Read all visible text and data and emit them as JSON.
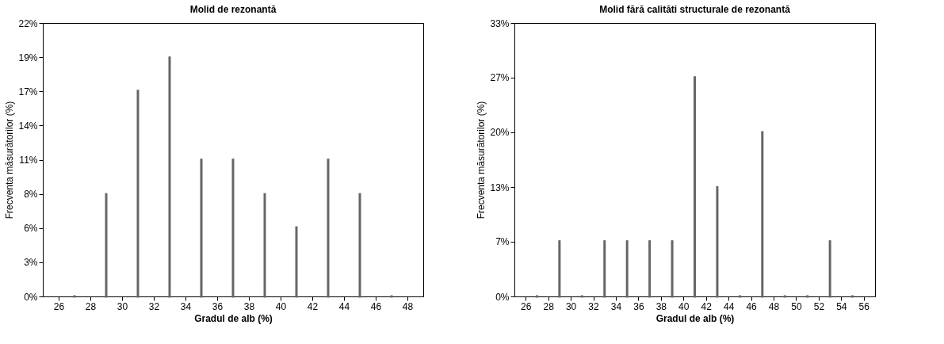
{
  "chart_data": [
    {
      "type": "bar",
      "title": "Molid de rezonantă",
      "xlabel": "Gradul de alb (%)",
      "ylabel": "Frecventa măsurătorilor (%)",
      "x": [
        27,
        29,
        31,
        33,
        35,
        37,
        39,
        41,
        43,
        45,
        47
      ],
      "values": [
        0,
        8.3,
        16.7,
        19.4,
        11.1,
        11.1,
        8.3,
        5.6,
        11.1,
        8.3,
        0
      ],
      "color": "#666666",
      "xlim": [
        25,
        49
      ],
      "xticks": [
        26,
        28,
        30,
        32,
        34,
        36,
        38,
        40,
        42,
        44,
        46,
        48
      ],
      "ylim": [
        0,
        22.22
      ],
      "yticks": [
        {
          "value": 0,
          "label": "0%"
        },
        {
          "value": 2.78,
          "label": "3%"
        },
        {
          "value": 5.56,
          "label": "6%"
        },
        {
          "value": 8.33,
          "label": "8%"
        },
        {
          "value": 11.11,
          "label": "11%"
        },
        {
          "value": 13.89,
          "label": "14%"
        },
        {
          "value": 16.67,
          "label": "17%"
        },
        {
          "value": 19.44,
          "label": "19%"
        },
        {
          "value": 22.22,
          "label": "22%"
        }
      ],
      "grid": false
    },
    {
      "type": "bar",
      "title": "Molid fără calităti structurale de rezonantă",
      "xlabel": "Gradul de alb (%)",
      "ylabel": "Frecventa măsurătorilor (%)",
      "x": [
        27,
        29,
        31,
        33,
        35,
        37,
        39,
        41,
        43,
        45,
        47,
        49,
        51,
        53,
        55
      ],
      "values": [
        0,
        6.7,
        0,
        6.7,
        6.7,
        6.7,
        6.7,
        26.7,
        13.3,
        0,
        20,
        0,
        0,
        6.7,
        0
      ],
      "color": "#666666",
      "xlim": [
        25,
        57
      ],
      "xticks": [
        26,
        28,
        30,
        32,
        34,
        36,
        38,
        40,
        42,
        44,
        46,
        48,
        50,
        52,
        54,
        56
      ],
      "ylim": [
        0,
        33.33
      ],
      "yticks": [
        {
          "value": 0,
          "label": "0%"
        },
        {
          "value": 6.67,
          "label": "7%"
        },
        {
          "value": 13.33,
          "label": "13%"
        },
        {
          "value": 20,
          "label": "20%"
        },
        {
          "value": 26.67,
          "label": "27%"
        },
        {
          "value": 33.33,
          "label": "33%"
        }
      ],
      "grid": false
    }
  ]
}
